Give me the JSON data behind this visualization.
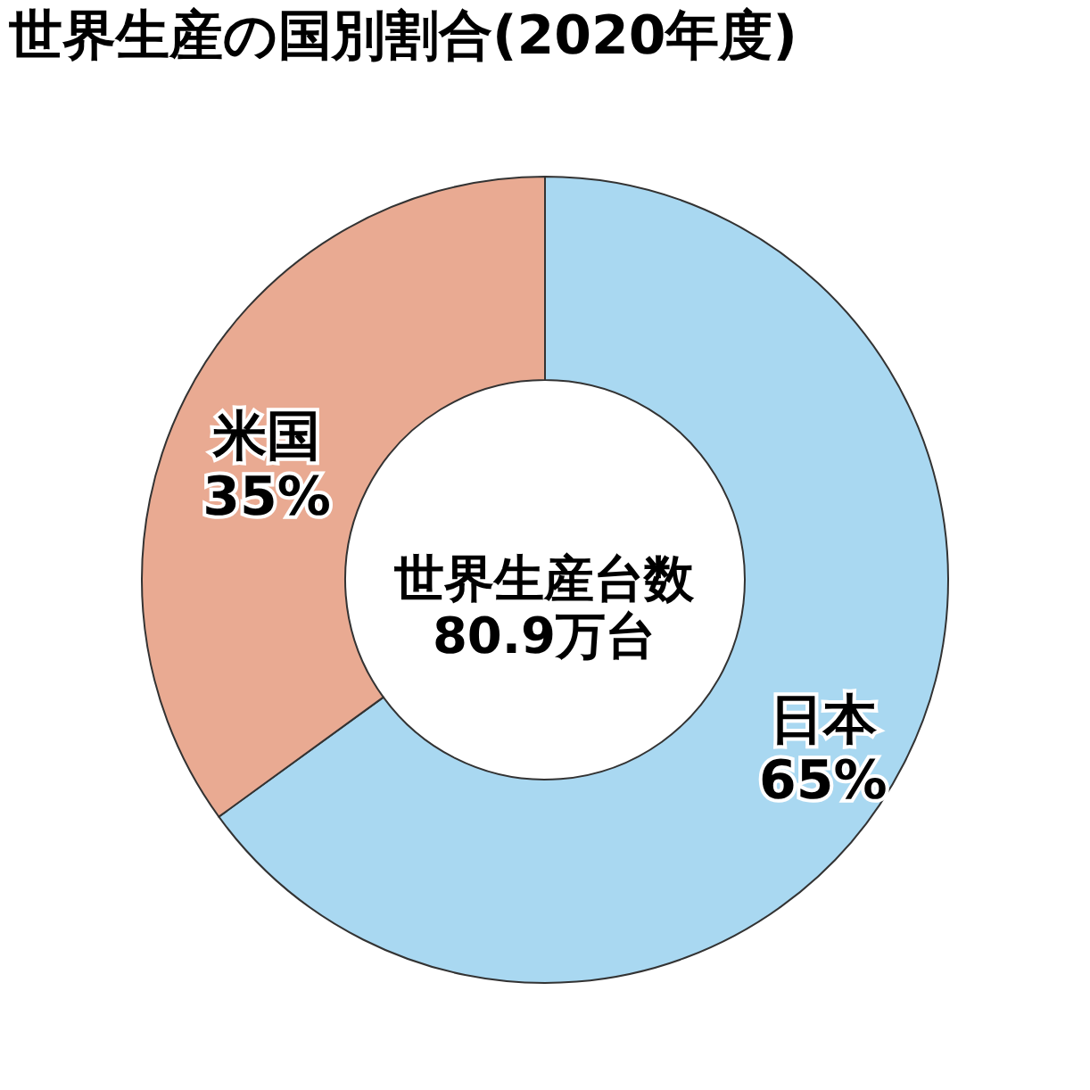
{
  "chart_data": {
    "type": "donut",
    "title": "世界生産の国別割合(2020年度)",
    "categories": [
      "日本",
      "米国"
    ],
    "values": [
      65,
      35
    ],
    "colors": [
      "#a9d8f1",
      "#e9aa92"
    ],
    "value_labels": [
      "65%",
      "35%"
    ],
    "annotations": [
      "世界生産台数",
      "80.9万台"
    ]
  }
}
